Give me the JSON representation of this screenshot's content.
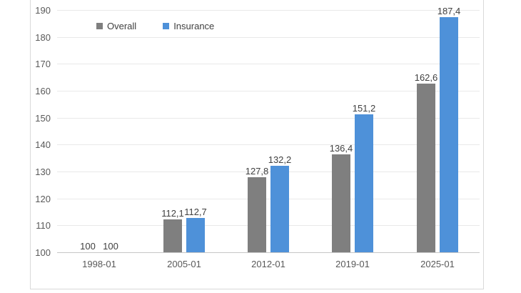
{
  "chart_data": {
    "type": "bar",
    "title": "",
    "xlabel": "",
    "ylabel": "",
    "categories": [
      "1998-01",
      "2005-01",
      "2012-01",
      "2019-01",
      "2025-01"
    ],
    "series": [
      {
        "name": "Overall",
        "color": "#7f7f7f",
        "values": [
          100,
          112.1,
          127.8,
          136.4,
          162.6
        ],
        "labels": [
          "100",
          "112,1",
          "127,8",
          "136,4",
          "162,6"
        ]
      },
      {
        "name": "Insurance",
        "color": "#4e91d9",
        "values": [
          100,
          112.7,
          132.2,
          151.2,
          187.4
        ],
        "labels": [
          "100",
          "112,7",
          "132,2",
          "151,2",
          "187,4"
        ]
      }
    ],
    "ylim": [
      100,
      190
    ],
    "yticks": [
      "100",
      "110",
      "120",
      "130",
      "140",
      "150",
      "160",
      "170",
      "180",
      "190"
    ],
    "grid": true,
    "legend_position": "top-left"
  },
  "colors": {
    "background": "#ffffff",
    "panel_border": "#d9d9d9",
    "gridline": "#e9e9e9",
    "axis_line": "#c6c6c6",
    "axis_text": "#595959",
    "label_text": "#404040"
  }
}
